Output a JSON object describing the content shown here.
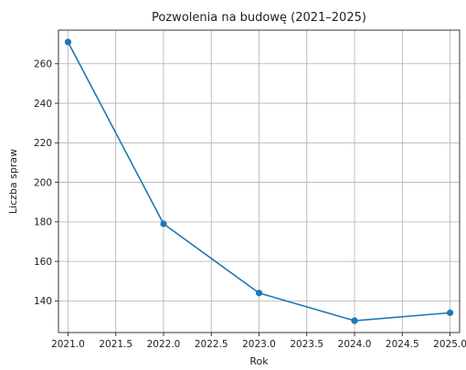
{
  "chart_data": {
    "type": "line",
    "title": "Pozwolenia na budowę (2021–2025)",
    "xlabel": "Rok",
    "ylabel": "Liczba spraw",
    "xlim": [
      2020.9,
      2025.1
    ],
    "ylim": [
      124,
      277
    ],
    "xticks": [
      2021.0,
      2021.5,
      2022.0,
      2022.5,
      2023.0,
      2023.5,
      2024.0,
      2024.5,
      2025.0
    ],
    "xtick_labels": [
      "2021.0",
      "2021.5",
      "2022.0",
      "2022.5",
      "2023.0",
      "2023.5",
      "2024.0",
      "2024.5",
      "2025.0"
    ],
    "yticks": [
      140,
      160,
      180,
      200,
      220,
      240,
      260
    ],
    "ytick_labels": [
      "140",
      "160",
      "180",
      "200",
      "220",
      "240",
      "260"
    ],
    "grid": true,
    "series": [
      {
        "x": [
          2021,
          2022,
          2023,
          2024,
          2025
        ],
        "y": [
          271,
          179,
          144,
          130,
          134
        ],
        "color": "#1f77b4"
      }
    ]
  }
}
